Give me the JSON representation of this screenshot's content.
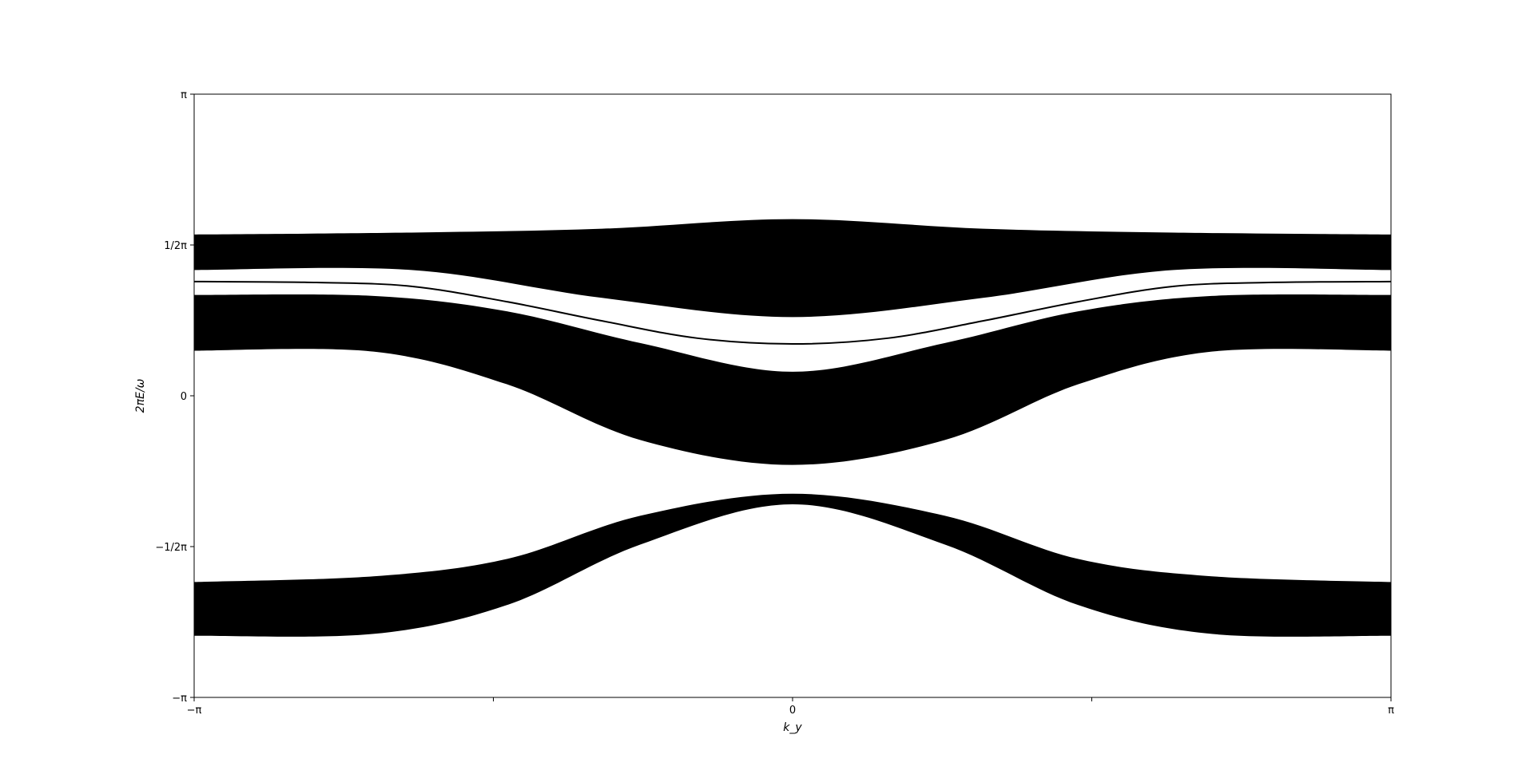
{
  "chart_data": {
    "type": "area",
    "xlabel": "k_y",
    "ylabel": "2πE/ω",
    "xlim": [
      -3.14159,
      3.14159
    ],
    "ylim": [
      -3.14159,
      3.14159
    ],
    "x_ticks": [
      {
        "value": -3.14159,
        "label": "−π"
      },
      {
        "value": -1.5708,
        "label": ""
      },
      {
        "value": 0,
        "label": "0"
      },
      {
        "value": 1.5708,
        "label": ""
      },
      {
        "value": 3.14159,
        "label": "π"
      }
    ],
    "y_ticks": [
      {
        "value": -3.14159,
        "label": "−π"
      },
      {
        "value": -1.5708,
        "label": "−1/2π"
      },
      {
        "value": 0,
        "label": "0"
      },
      {
        "value": 1.5708,
        "label": "1/2π"
      },
      {
        "value": 3.14159,
        "label": "π"
      }
    ],
    "grid": false,
    "band_color": "#000000",
    "bands": [
      {
        "x": [
          -3.14159,
          -2.0,
          -1.0,
          0,
          1.0,
          2.0,
          3.14159
        ],
        "lower": [
          1.31,
          1.31,
          1.02,
          0.82,
          1.02,
          1.31,
          1.31
        ],
        "upper": [
          1.68,
          1.7,
          1.74,
          1.84,
          1.74,
          1.7,
          1.68
        ]
      },
      {
        "x": [
          -3.14159,
          -2.2,
          -1.5,
          -0.8,
          0,
          0.8,
          1.5,
          2.2,
          3.14159
        ],
        "lower": [
          0.47,
          0.46,
          0.12,
          -0.46,
          -0.72,
          -0.46,
          0.12,
          0.46,
          0.47
        ],
        "upper": [
          1.05,
          1.04,
          0.88,
          0.55,
          0.25,
          0.55,
          0.88,
          1.04,
          1.05
        ]
      },
      {
        "x": [
          -3.14159,
          -2.2,
          -1.5,
          -0.8,
          0,
          0.8,
          1.5,
          2.2,
          3.14159
        ],
        "lower": [
          -2.5,
          -2.48,
          -2.18,
          -1.55,
          -1.13,
          -1.55,
          -2.18,
          -2.48,
          -2.5
        ],
        "upper": [
          -1.94,
          -1.88,
          -1.7,
          -1.25,
          -1.02,
          -1.25,
          -1.7,
          -1.88,
          -1.94
        ]
      }
    ],
    "edge_states": [
      {
        "x": [
          -3.14159,
          -2.5,
          -2.0,
          -1.5,
          -1.0,
          -0.5,
          0,
          0.5,
          1.0,
          1.5,
          2.0,
          2.5,
          3.14159
        ],
        "y": [
          1.19,
          1.18,
          1.14,
          0.98,
          0.78,
          0.6,
          0.54,
          0.6,
          0.78,
          0.98,
          1.14,
          1.18,
          1.19
        ]
      }
    ]
  }
}
